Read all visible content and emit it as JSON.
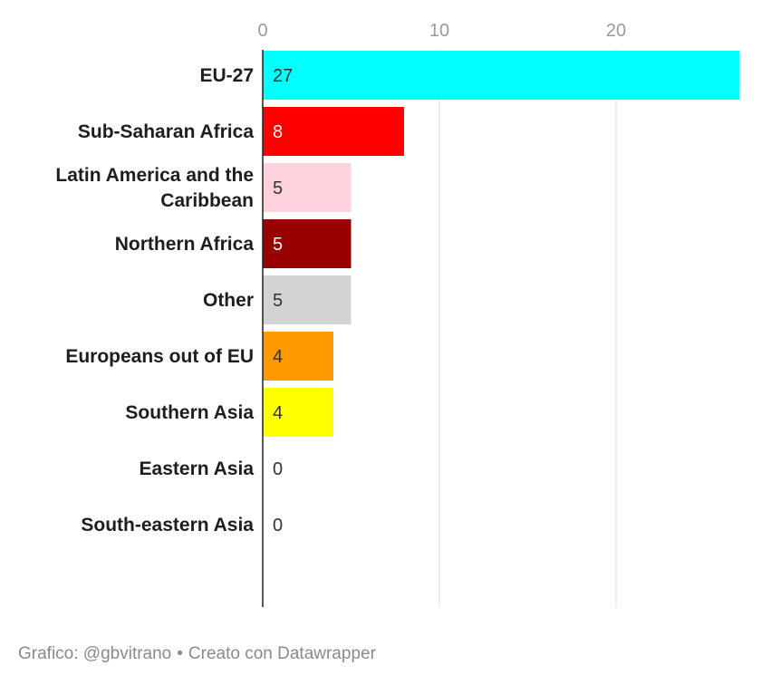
{
  "chart_data": {
    "type": "bar",
    "orientation": "horizontal",
    "categories": [
      "EU-27",
      "Sub-Saharan Africa",
      "Latin America and the Caribbean",
      "Northern Africa",
      "Other",
      "Europeans out of EU",
      "Southern Asia",
      "Eastern Asia",
      "South-eastern Asia"
    ],
    "category_lines": [
      [
        "EU-27"
      ],
      [
        "Sub-Saharan Africa"
      ],
      [
        "Latin America and the",
        "Caribbean"
      ],
      [
        "Northern Africa"
      ],
      [
        "Other"
      ],
      [
        "Europeans out of EU"
      ],
      [
        "Southern Asia"
      ],
      [
        "Eastern Asia"
      ],
      [
        "South-eastern Asia"
      ]
    ],
    "values": [
      27,
      8,
      5,
      5,
      5,
      4,
      4,
      0,
      0
    ],
    "colors": [
      "#00ffff",
      "#ff0000",
      "#ffd1dc",
      "#990000",
      "#d3d3d3",
      "#ff9900",
      "#ffff00",
      "#ffffff",
      "#ffffff"
    ],
    "label_colors": [
      "#333333",
      "#ffffff",
      "#333333",
      "#ffffff",
      "#333333",
      "#333333",
      "#333333",
      "#333333",
      "#333333"
    ],
    "x_ticks": [
      0,
      10,
      20
    ],
    "xlim": [
      0,
      27
    ],
    "grid": true,
    "legend": "none",
    "title": "",
    "xlabel": "",
    "ylabel": ""
  },
  "footer": {
    "credit": "Grafico: @gbvitrano",
    "separator": "•",
    "tool": "Creato con Datawrapper"
  }
}
